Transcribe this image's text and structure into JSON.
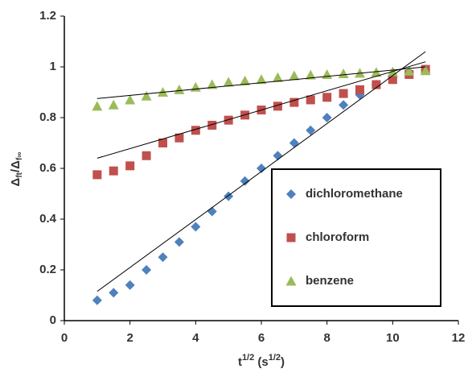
{
  "chart_data": {
    "type": "scatter",
    "xlabel": [
      "t",
      "1/2",
      " (s",
      "1/2",
      ")"
    ],
    "ylabel": [
      "Δ",
      "ft",
      "/Δ",
      "f∞"
    ],
    "xlim": [
      0,
      12
    ],
    "xticks": [
      0,
      2,
      4,
      6,
      8,
      10,
      12
    ],
    "ylim": [
      0,
      1.2
    ],
    "yticks": [
      0,
      0.2,
      0.4,
      0.6,
      0.8,
      1,
      1.2
    ],
    "grid": false,
    "series": [
      {
        "name": "dichloromethane",
        "color": "#4f81bd",
        "marker": "diamond",
        "x": [
          1,
          1.5,
          2,
          2.5,
          3,
          3.5,
          4,
          4.5,
          5,
          5.5,
          6,
          6.5,
          7,
          7.5,
          8,
          8.5,
          9,
          9.5,
          10,
          10.5,
          11
        ],
        "values": [
          0.08,
          0.11,
          0.14,
          0.2,
          0.25,
          0.31,
          0.37,
          0.43,
          0.49,
          0.55,
          0.6,
          0.65,
          0.7,
          0.75,
          0.8,
          0.85,
          0.89,
          0.93,
          0.96,
          0.98,
          0.99
        ],
        "trendline": {
          "x": [
            1,
            11
          ],
          "values": [
            0.115,
            1.06
          ]
        }
      },
      {
        "name": "chloroform",
        "color": "#c0504d",
        "marker": "square",
        "x": [
          1,
          1.5,
          2,
          2.5,
          3,
          3.5,
          4,
          4.5,
          5,
          5.5,
          6,
          6.5,
          7,
          7.5,
          8,
          8.5,
          9,
          9.5,
          10,
          10.5,
          11
        ],
        "values": [
          0.575,
          0.59,
          0.61,
          0.65,
          0.7,
          0.72,
          0.75,
          0.77,
          0.79,
          0.81,
          0.83,
          0.845,
          0.86,
          0.87,
          0.88,
          0.895,
          0.91,
          0.93,
          0.95,
          0.97,
          0.99
        ],
        "trendline": {
          "x": [
            1,
            11
          ],
          "values": [
            0.64,
            1.02
          ]
        }
      },
      {
        "name": "benzene",
        "color": "#9bbb59",
        "marker": "triangle",
        "x": [
          1,
          1.5,
          2,
          2.5,
          3,
          3.5,
          4,
          4.5,
          5,
          5.5,
          6,
          6.5,
          7,
          7.5,
          8,
          8.5,
          9,
          9.5,
          10,
          10.5,
          11
        ],
        "values": [
          0.845,
          0.85,
          0.87,
          0.885,
          0.9,
          0.91,
          0.92,
          0.93,
          0.94,
          0.945,
          0.95,
          0.958,
          0.965,
          0.968,
          0.97,
          0.973,
          0.975,
          0.978,
          0.98,
          0.983,
          0.985
        ],
        "trendline": {
          "x": [
            1,
            11
          ],
          "values": [
            0.875,
            1.0
          ]
        }
      }
    ]
  }
}
